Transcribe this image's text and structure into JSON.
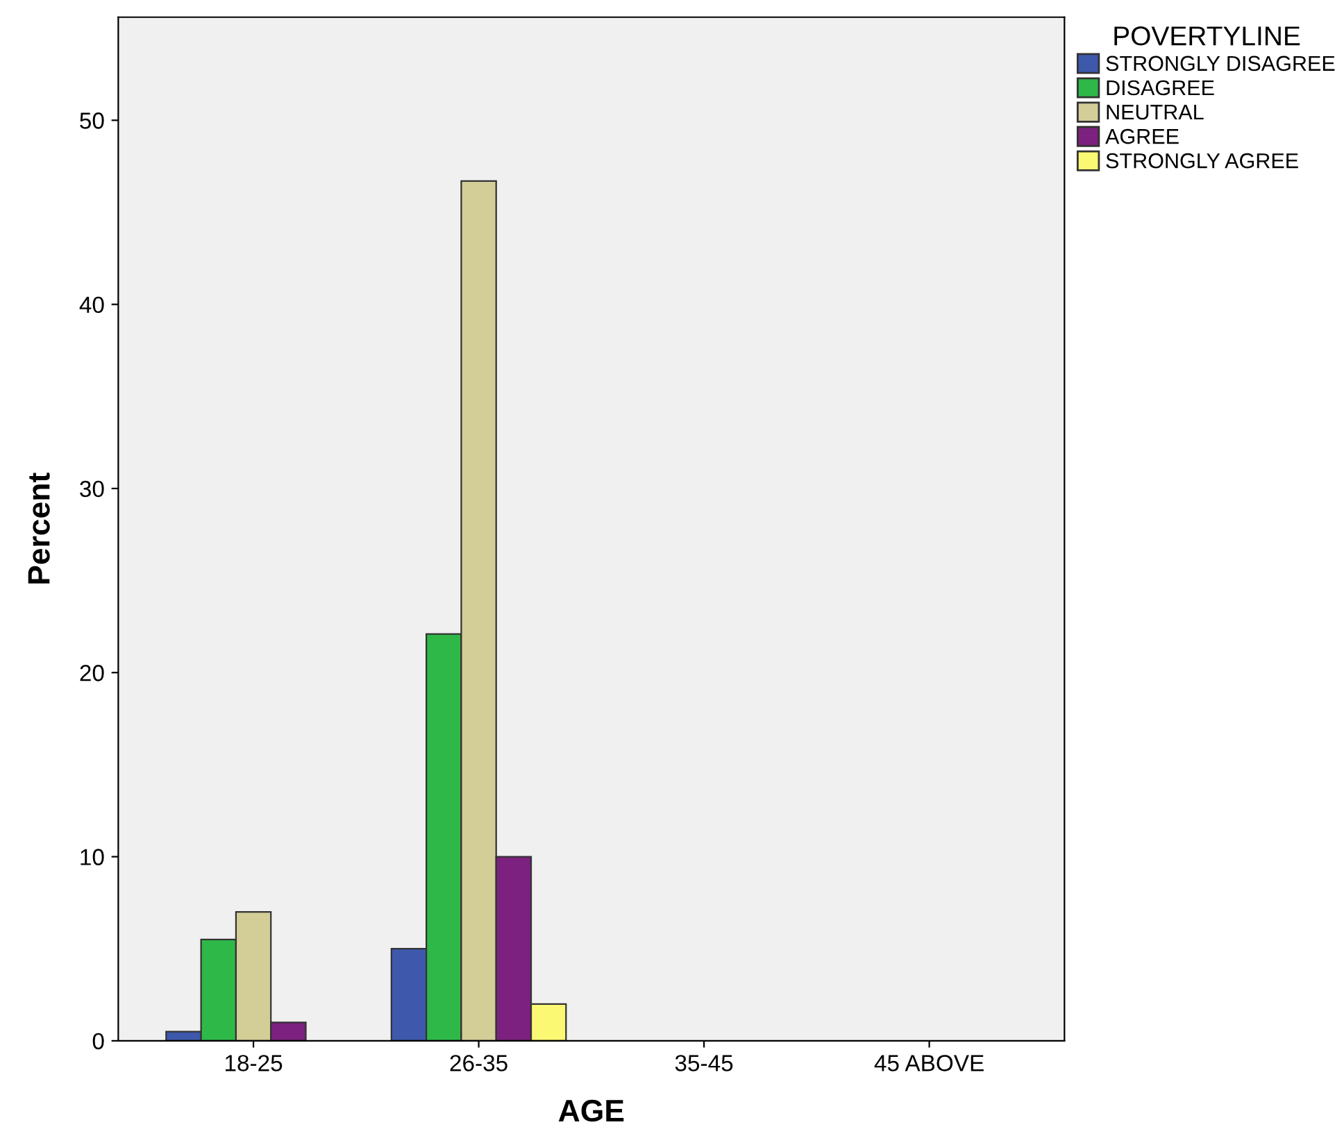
{
  "chart_data": {
    "type": "bar",
    "xlabel": "AGE",
    "ylabel": "Percent",
    "legend_title": "POVERTYLINE",
    "categories": [
      "18-25",
      "26-35",
      "35-45",
      "45 ABOVE"
    ],
    "series": [
      {
        "name": "STRONGLY DISAGREE",
        "color": "#3e58ac",
        "values": [
          0.5,
          5.0,
          null,
          null
        ]
      },
      {
        "name": "DISAGREE",
        "color": "#2eb848",
        "values": [
          5.5,
          22.1,
          null,
          null
        ]
      },
      {
        "name": "NEUTRAL",
        "color": "#d3ce97",
        "values": [
          7.0,
          46.7,
          null,
          null
        ]
      },
      {
        "name": "AGREE",
        "color": "#7c217f",
        "values": [
          1.0,
          10.0,
          null,
          null
        ]
      },
      {
        "name": "STRONGLY AGREE",
        "color": "#fbf873",
        "values": [
          null,
          2.0,
          null,
          null
        ]
      }
    ],
    "ylim": [
      0,
      55.6
    ],
    "yticks": [
      0,
      10,
      20,
      30,
      40,
      50
    ],
    "grid": false,
    "legend": "top right"
  }
}
